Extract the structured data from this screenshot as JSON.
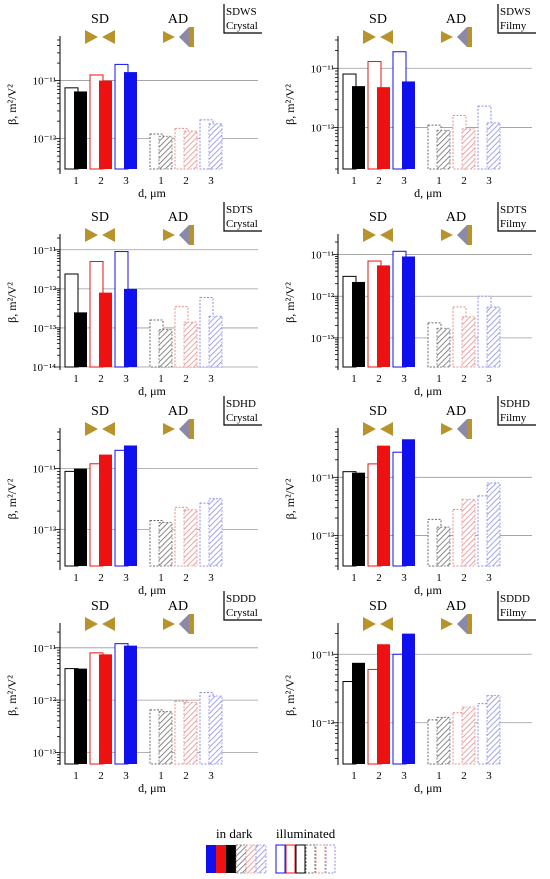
{
  "figure": {
    "colors": {
      "black": "#000000",
      "red": "#ee1111",
      "blue": "#1010ee",
      "grey_hatch": "#6b6b6b",
      "pink_hatch": "#e88c8c",
      "lavender_hatch": "#8c8cea",
      "antenna_gold": "#b8922a",
      "antenna_grey": "#8a8aa8",
      "gridline": "#9a9a9a"
    },
    "section_labels": {
      "sd": "SD",
      "ad": "AD"
    },
    "legend": {
      "dark_label": "in dark",
      "illuminated_label": "illuminated"
    }
  },
  "chart_data": [
    {
      "type": "bar",
      "scale": "log",
      "title": "SDWS",
      "subtitle": "Crystal",
      "xlabel": "d, μm",
      "ylabel": "β, m²/V²",
      "yticks": [
        "10⁻¹²",
        "10⁻¹¹"
      ],
      "ylim": [
        3e-13,
        5e-11
      ],
      "categories": [
        "1",
        "2",
        "3",
        "1",
        "2",
        "3"
      ],
      "groups": [
        "SD",
        "SD",
        "SD",
        "AD",
        "AD",
        "AD"
      ],
      "series": [
        {
          "name": "in dark",
          "values": [
            6.5e-12,
            1e-11,
            1.4e-11,
            1.1e-12,
            1.35e-12,
            1.8e-12
          ]
        },
        {
          "name": "illuminated",
          "values": [
            7.5e-12,
            1.25e-11,
            1.9e-11,
            1.2e-12,
            1.5e-12,
            2.1e-12
          ]
        }
      ]
    },
    {
      "type": "bar",
      "scale": "log",
      "title": "SDWS",
      "subtitle": "Filmy",
      "xlabel": "d, μm",
      "ylabel": "β, m²/V²",
      "yticks": [
        "10⁻¹²",
        "10⁻¹¹"
      ],
      "ylim": [
        2e-13,
        3e-11
      ],
      "categories": [
        "1",
        "2",
        "3",
        "1",
        "2",
        "3"
      ],
      "groups": [
        "SD",
        "SD",
        "SD",
        "AD",
        "AD",
        "AD"
      ],
      "series": [
        {
          "name": "in dark",
          "values": [
            5e-12,
            4.8e-12,
            6e-12,
            9e-13,
            9.5e-13,
            1.2e-12
          ]
        },
        {
          "name": "illuminated",
          "values": [
            8e-12,
            1.3e-11,
            1.9e-11,
            1.1e-12,
            1.6e-12,
            2.3e-12
          ]
        }
      ]
    },
    {
      "type": "bar",
      "scale": "log",
      "title": "SDTS",
      "subtitle": "Crystal",
      "xlabel": "d, μm",
      "ylabel": "β, m²/V²",
      "yticks": [
        "10⁻¹⁴",
        "10⁻¹³",
        "10⁻¹²",
        "10⁻¹¹"
      ],
      "ylim": [
        1e-14,
        2e-11
      ],
      "categories": [
        "1",
        "2",
        "3",
        "1",
        "2",
        "3"
      ],
      "groups": [
        "SD",
        "SD",
        "SD",
        "AD",
        "AD",
        "AD"
      ],
      "series": [
        {
          "name": "in dark",
          "values": [
            2.5e-13,
            8e-13,
            1e-12,
            9e-14,
            1.4e-13,
            2e-13
          ]
        },
        {
          "name": "illuminated",
          "values": [
            2.4e-12,
            5e-12,
            9e-12,
            1.6e-13,
            3.5e-13,
            6e-13
          ]
        }
      ]
    },
    {
      "type": "bar",
      "scale": "log",
      "title": "SDTS",
      "subtitle": "Filmy",
      "xlabel": "d, μm",
      "ylabel": "β, m²/V²",
      "yticks": [
        "10⁻¹³",
        "10⁻¹²",
        "10⁻¹¹"
      ],
      "ylim": [
        2e-14,
        2.5e-11
      ],
      "categories": [
        "1",
        "2",
        "3",
        "1",
        "2",
        "3"
      ],
      "groups": [
        "SD",
        "SD",
        "SD",
        "AD",
        "AD",
        "AD"
      ],
      "series": [
        {
          "name": "in dark",
          "values": [
            2.2e-12,
            5.5e-12,
            9e-12,
            1.7e-13,
            3.2e-13,
            5.5e-13
          ]
        },
        {
          "name": "illuminated",
          "values": [
            3e-12,
            7e-12,
            1.2e-11,
            2.3e-13,
            5.5e-13,
            1e-12
          ]
        }
      ]
    },
    {
      "type": "bar",
      "scale": "log",
      "title": "SDHD",
      "subtitle": "Crystal",
      "xlabel": "d, μm",
      "ylabel": "β, m²/V²",
      "yticks": [
        "10⁻¹²",
        "10⁻¹¹"
      ],
      "ylim": [
        2.5e-13,
        4e-11
      ],
      "categories": [
        "1",
        "2",
        "3",
        "1",
        "2",
        "3"
      ],
      "groups": [
        "SD",
        "SD",
        "SD",
        "AD",
        "AD",
        "AD"
      ],
      "series": [
        {
          "name": "in dark",
          "values": [
            1e-11,
            1.7e-11,
            2.4e-11,
            1.3e-12,
            2.1e-12,
            3.2e-12
          ]
        },
        {
          "name": "illuminated",
          "values": [
            9e-12,
            1.2e-11,
            2e-11,
            1.4e-12,
            2.3e-12,
            2.7e-12
          ]
        }
      ]
    },
    {
      "type": "bar",
      "scale": "log",
      "title": "SDHD",
      "subtitle": "Filmy",
      "xlabel": "d, μm",
      "ylabel": "β, m²/V²",
      "yticks": [
        "10⁻¹²",
        "10⁻¹¹"
      ],
      "ylim": [
        3e-13,
        6e-11
      ],
      "categories": [
        "1",
        "2",
        "3",
        "1",
        "2",
        "3"
      ],
      "groups": [
        "SD",
        "SD",
        "SD",
        "AD",
        "AD",
        "AD"
      ],
      "series": [
        {
          "name": "in dark",
          "values": [
            1.2e-11,
            3.5e-11,
            4.5e-11,
            1.4e-12,
            4.2e-12,
            8e-12
          ]
        },
        {
          "name": "illuminated",
          "values": [
            1.25e-11,
            1.7e-11,
            2.7e-11,
            1.9e-12,
            2.8e-12,
            4.8e-12
          ]
        }
      ]
    },
    {
      "type": "bar",
      "scale": "log",
      "title": "SDDD",
      "subtitle": "Crystal",
      "xlabel": "d, μm",
      "ylabel": "β, m²/V²",
      "yticks": [
        "10⁻¹³",
        "10⁻¹²",
        "10⁻¹¹"
      ],
      "ylim": [
        6e-14,
        2.5e-11
      ],
      "categories": [
        "1",
        "2",
        "3",
        "1",
        "2",
        "3"
      ],
      "groups": [
        "SD",
        "SD",
        "SD",
        "AD",
        "AD",
        "AD"
      ],
      "series": [
        {
          "name": "in dark",
          "values": [
            4e-12,
            7.5e-12,
            1.1e-11,
            6e-13,
            9e-13,
            1.2e-12
          ]
        },
        {
          "name": "illuminated",
          "values": [
            4e-12,
            8e-12,
            1.2e-11,
            6.5e-13,
            9.5e-13,
            1.4e-12
          ]
        }
      ]
    },
    {
      "type": "bar",
      "scale": "log",
      "title": "SDDD",
      "subtitle": "Filmy",
      "xlabel": "d, μm",
      "ylabel": "β, m²/V²",
      "yticks": [
        "10⁻¹²",
        "10⁻¹¹"
      ],
      "ylim": [
        2.5e-13,
        2.5e-11
      ],
      "categories": [
        "1",
        "2",
        "3",
        "1",
        "2",
        "3"
      ],
      "groups": [
        "SD",
        "SD",
        "SD",
        "AD",
        "AD",
        "AD"
      ],
      "series": [
        {
          "name": "in dark",
          "values": [
            7.5e-12,
            1.4e-11,
            2e-11,
            1.2e-12,
            1.7e-12,
            2.5e-12
          ]
        },
        {
          "name": "illuminated",
          "values": [
            4e-12,
            6e-12,
            1e-11,
            1.1e-12,
            1.4e-12,
            1.9e-12
          ]
        }
      ]
    }
  ]
}
